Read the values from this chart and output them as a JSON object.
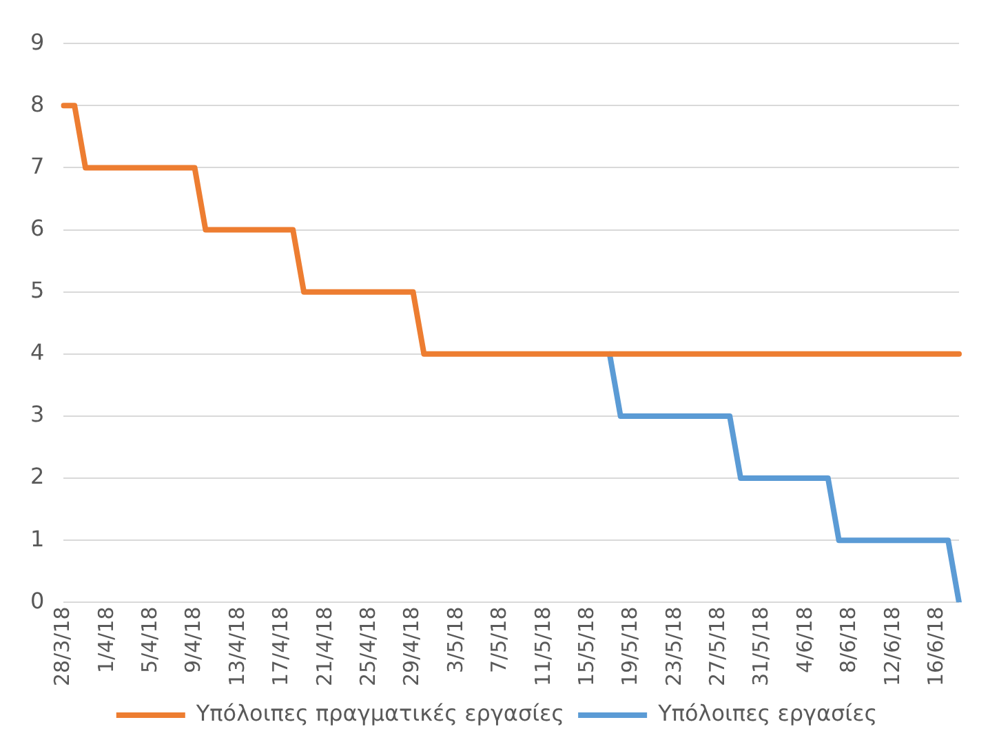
{
  "chart_data": {
    "type": "line",
    "categories": [
      "28/3/18",
      null,
      null,
      null,
      "1/4/18",
      null,
      null,
      null,
      "5/4/18",
      null,
      null,
      null,
      "9/4/18",
      null,
      null,
      null,
      "13/4/18",
      null,
      null,
      null,
      "17/4/18",
      null,
      null,
      null,
      "21/4/18",
      null,
      null,
      null,
      "25/4/18",
      null,
      null,
      null,
      "29/4/18",
      null,
      null,
      null,
      "3/5/18",
      null,
      null,
      null,
      "7/5/18",
      null,
      null,
      null,
      "11/5/18",
      null,
      null,
      null,
      "15/5/18",
      null,
      null,
      null,
      "19/5/18",
      null,
      null,
      null,
      "23/5/18",
      null,
      null,
      null,
      "27/5/18",
      null,
      null,
      null,
      "31/5/18",
      null,
      null,
      null,
      "4/6/18",
      null,
      null,
      null,
      "8/6/18",
      null,
      null,
      null,
      "12/6/18",
      null,
      null,
      null,
      "16/6/18",
      null,
      null
    ],
    "series": [
      {
        "name": "Υπόλοιπες εργασίες",
        "color": "#5b9bd5",
        "values": [
          null,
          null,
          null,
          null,
          null,
          null,
          null,
          null,
          null,
          null,
          null,
          null,
          null,
          null,
          null,
          null,
          null,
          null,
          null,
          null,
          null,
          null,
          null,
          null,
          null,
          null,
          null,
          null,
          null,
          null,
          null,
          null,
          null,
          null,
          null,
          null,
          null,
          null,
          null,
          null,
          null,
          null,
          null,
          null,
          null,
          null,
          null,
          null,
          null,
          null,
          4,
          3,
          3,
          3,
          3,
          3,
          3,
          3,
          3,
          3,
          3,
          3,
          2,
          2,
          2,
          2,
          2,
          2,
          2,
          2,
          2,
          1,
          1,
          1,
          1,
          1,
          1,
          1,
          1,
          1,
          1,
          1,
          0
        ]
      },
      {
        "name": "Υπόλοιπες πραγματικές εργασίες",
        "color": "#ed7d31",
        "values": [
          8,
          8,
          7,
          7,
          7,
          7,
          7,
          7,
          7,
          7,
          7,
          7,
          7,
          6,
          6,
          6,
          6,
          6,
          6,
          6,
          6,
          6,
          5,
          5,
          5,
          5,
          5,
          5,
          5,
          5,
          5,
          5,
          5,
          4,
          4,
          4,
          4,
          4,
          4,
          4,
          4,
          4,
          4,
          4,
          4,
          4,
          4,
          4,
          4,
          4,
          4,
          4,
          4,
          4,
          4,
          4,
          4,
          4,
          4,
          4,
          4,
          4,
          4,
          4,
          4,
          4,
          4,
          4,
          4,
          4,
          4,
          4,
          4,
          4,
          4,
          4,
          4,
          4,
          4,
          4,
          4,
          4,
          4
        ]
      }
    ],
    "ylim": [
      0,
      9
    ],
    "yticks": [
      0,
      1,
      2,
      3,
      4,
      5,
      6,
      7,
      8,
      9
    ],
    "grid": "y",
    "legend": "bottom",
    "marker": "none",
    "line_style": "solid"
  }
}
